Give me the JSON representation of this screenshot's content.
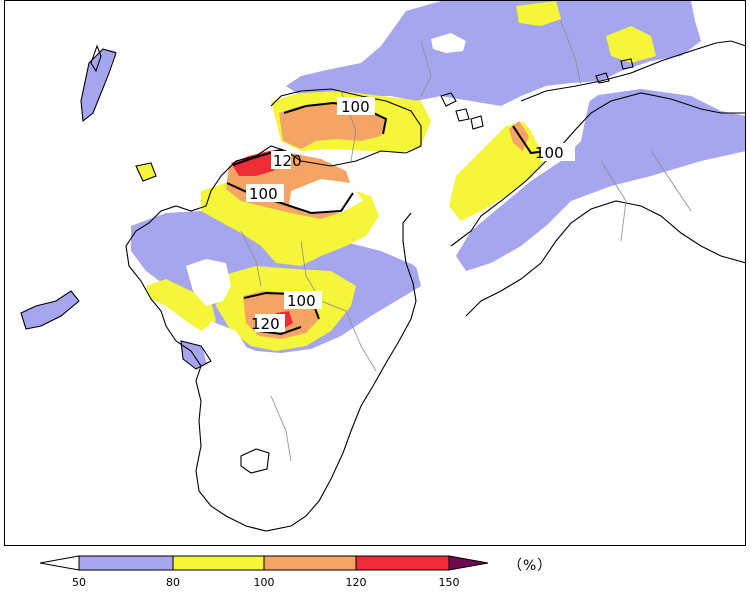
{
  "map": {
    "contour_labels": [
      "100",
      "120",
      "100",
      "100",
      "120",
      "100"
    ],
    "colors": {
      "land": "#ffffff",
      "sea": "#ffffff",
      "coast": "#000000",
      "prefecture_border": "#8c8c8c",
      "contour_line": "#000000"
    },
    "fill_classes": [
      {
        "range": "50-80",
        "color": "#a6a6ee"
      },
      {
        "range": "80-100",
        "color": "#f5f53a"
      },
      {
        "range": "100-120",
        "color": "#f4a464"
      },
      {
        "range": "120-150",
        "color": "#ee2c38"
      }
    ]
  },
  "legend": {
    "unit": "（%）",
    "ticks": [
      "50",
      "80",
      "100",
      "120",
      "150"
    ],
    "colors": {
      "under": "#ffffff",
      "c50_80": "#a6a6ee",
      "c80_100": "#f5f53a",
      "c100_120": "#f4a464",
      "c120_150": "#ee2c38",
      "over": "#6e0a50"
    }
  }
}
